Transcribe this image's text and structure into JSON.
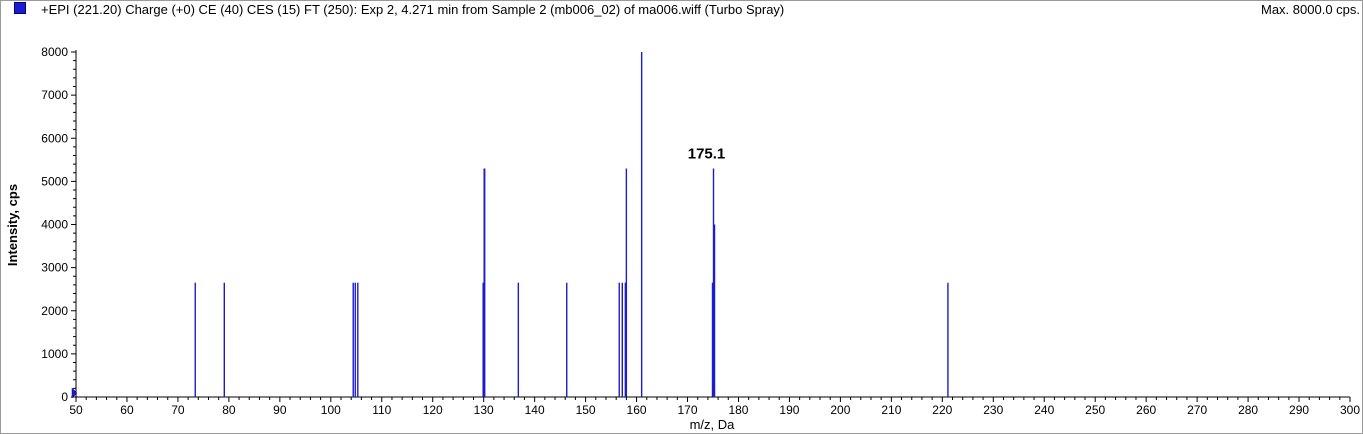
{
  "header": {
    "title": "+EPI (221.20) Charge (+0) CE (40) CES (15) FT (250): Exp 2, 4.271 min from Sample 2 (mb006_02) of ma006.wiff (Turbo Spray)",
    "max": "Max. 8000.0 cps."
  },
  "colors": {
    "series": "#1c1ccc",
    "axis": "#000000"
  },
  "chart_data": {
    "type": "bar",
    "title": "+EPI (221.20) Charge (+0) CE (40) CES (15) FT (250): Exp 2, 4.271 min from Sample 2 (mb006_02) of ma006.wiff (Turbo Spray)",
    "xlabel": "m/z, Da",
    "ylabel": "Intensity, cps",
    "xlim": [
      50,
      300
    ],
    "ylim": [
      0,
      8000
    ],
    "xticks": [
      50,
      60,
      70,
      80,
      90,
      100,
      110,
      120,
      130,
      140,
      150,
      160,
      170,
      180,
      190,
      200,
      210,
      220,
      230,
      240,
      250,
      260,
      270,
      280,
      290,
      300
    ],
    "yticks": [
      0,
      1000,
      2000,
      3000,
      4000,
      5000,
      6000,
      7000,
      8000
    ],
    "grid": false,
    "peaks": [
      {
        "mz": 73.4,
        "intensity": 2650
      },
      {
        "mz": 79.1,
        "intensity": 2650
      },
      {
        "mz": 104.4,
        "intensity": 2650
      },
      {
        "mz": 104.8,
        "intensity": 2650
      },
      {
        "mz": 105.3,
        "intensity": 2650
      },
      {
        "mz": 129.9,
        "intensity": 2650
      },
      {
        "mz": 130.1,
        "intensity": 5300
      },
      {
        "mz": 130.2,
        "intensity": 5300
      },
      {
        "mz": 136.8,
        "intensity": 2650
      },
      {
        "mz": 146.3,
        "intensity": 2650
      },
      {
        "mz": 156.6,
        "intensity": 2650
      },
      {
        "mz": 157.2,
        "intensity": 2650
      },
      {
        "mz": 157.8,
        "intensity": 2650
      },
      {
        "mz": 158.0,
        "intensity": 5300
      },
      {
        "mz": 161.0,
        "intensity": 8000
      },
      {
        "mz": 174.9,
        "intensity": 2650
      },
      {
        "mz": 175.1,
        "intensity": 5300
      },
      {
        "mz": 175.3,
        "intensity": 4000
      },
      {
        "mz": 221.1,
        "intensity": 2650
      }
    ],
    "annotations": [
      {
        "mz": 175.1,
        "intensity": 5300,
        "text": "175.1"
      }
    ]
  }
}
